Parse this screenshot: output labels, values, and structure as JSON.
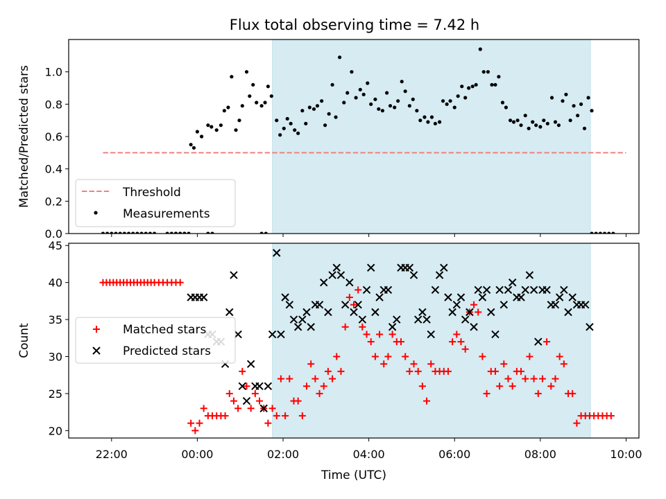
{
  "figure": {
    "title": "Flux total observing time = 7.42 h"
  },
  "chart_data": [
    {
      "type": "scatter",
      "title": "Flux total observing time = 7.42 h",
      "xlabel": "",
      "ylabel": "Matched/Predicted stars",
      "x_unit": "hours UTC (values >= 24 are next day)",
      "xlim": [
        21.0,
        34.3
      ],
      "ylim": [
        0.0,
        1.2
      ],
      "yticks": [
        0.0,
        0.2,
        0.4,
        0.6,
        0.8,
        1.0
      ],
      "yticklabels": [
        "0.0",
        "0.2",
        "0.4",
        "0.6",
        "0.8",
        "1.0"
      ],
      "shaded_span": [
        25.75,
        33.17
      ],
      "legend_loc": "lower left",
      "threshold": {
        "name": "Threshold",
        "y": 0.5,
        "x": [
          21.8,
          34.0
        ],
        "color": "#f08080"
      },
      "measurements": {
        "name": "Measurements",
        "color": "#000000",
        "x": [
          21.8,
          21.9,
          22.0,
          22.1,
          22.2,
          22.3,
          22.4,
          22.5,
          22.6,
          22.7,
          22.8,
          22.9,
          23.0,
          23.3,
          23.4,
          23.5,
          23.6,
          23.7,
          23.85,
          23.92,
          24.0,
          24.1,
          24.25,
          24.33,
          24.45,
          24.55,
          24.63,
          24.72,
          24.8,
          24.9,
          24.98,
          25.05,
          25.15,
          25.22,
          25.3,
          25.38,
          25.5,
          25.58,
          25.65,
          25.73,
          25.85,
          25.93,
          26.02,
          26.1,
          26.18,
          26.27,
          26.35,
          26.45,
          26.53,
          26.62,
          26.72,
          26.8,
          26.9,
          26.98,
          27.07,
          27.15,
          27.23,
          27.32,
          27.42,
          27.5,
          27.6,
          27.7,
          27.8,
          27.88,
          27.97,
          28.05,
          28.15,
          28.23,
          28.32,
          28.42,
          28.5,
          28.6,
          28.68,
          28.77,
          28.85,
          28.95,
          29.03,
          29.12,
          29.2,
          29.3,
          29.38,
          29.47,
          29.55,
          29.65,
          29.73,
          29.82,
          29.9,
          30.0,
          30.08,
          30.17,
          30.25,
          30.33,
          30.42,
          30.5,
          30.6,
          30.68,
          30.78,
          30.87,
          30.95,
          31.03,
          31.12,
          31.2,
          31.3,
          31.38,
          31.47,
          31.55,
          31.65,
          31.73,
          31.82,
          31.9,
          32.0,
          32.08,
          32.17,
          32.27,
          32.35,
          32.43,
          32.52,
          32.6,
          32.7,
          32.78,
          32.87,
          32.95,
          33.03,
          33.12,
          33.2,
          23.5,
          23.6,
          23.7,
          23.8,
          24.25,
          24.35,
          25.5,
          25.6,
          33.2,
          33.3,
          33.4,
          33.5,
          33.6,
          33.7
        ],
        "y": [
          0,
          0,
          0,
          0,
          0,
          0,
          0,
          0,
          0,
          0,
          0,
          0,
          0,
          0,
          0,
          0,
          0,
          0,
          0.55,
          0.53,
          0.63,
          0.6,
          0.67,
          0.66,
          0.64,
          0.67,
          0.76,
          0.78,
          0.97,
          0.64,
          0.7,
          0.79,
          1.0,
          0.85,
          0.92,
          0.81,
          0.79,
          0.81,
          0.91,
          0.85,
          0.7,
          0.61,
          0.65,
          0.71,
          0.68,
          0.64,
          0.62,
          0.76,
          0.68,
          0.78,
          0.77,
          0.79,
          0.82,
          0.67,
          0.74,
          0.92,
          0.72,
          1.09,
          0.81,
          0.87,
          1.0,
          0.84,
          0.89,
          0.86,
          0.93,
          0.8,
          0.83,
          0.77,
          0.76,
          0.87,
          0.79,
          0.78,
          0.82,
          0.94,
          0.88,
          0.79,
          0.83,
          0.76,
          0.7,
          0.72,
          0.69,
          0.72,
          0.68,
          0.69,
          0.82,
          0.8,
          0.82,
          0.78,
          0.85,
          0.91,
          0.84,
          0.9,
          0.91,
          0.92,
          1.14,
          1.0,
          1.0,
          0.92,
          0.92,
          0.97,
          0.81,
          0.78,
          0.7,
          0.69,
          0.7,
          0.67,
          0.73,
          0.65,
          0.69,
          0.67,
          0.66,
          0.7,
          0.68,
          0.84,
          0.69,
          0.67,
          0.82,
          0.86,
          0.7,
          0.79,
          0.73,
          0.8,
          0.65,
          0.84,
          0.76,
          0,
          0,
          0,
          0,
          0,
          0,
          0,
          0,
          0,
          0,
          0,
          0,
          0,
          0
        ]
      }
    },
    {
      "type": "scatter",
      "title": "",
      "xlabel": "Time (UTC)",
      "ylabel": "Count",
      "x_unit": "hours UTC (values >= 24 are next day)",
      "xlim": [
        21.0,
        34.3
      ],
      "ylim": [
        19.0,
        45.3
      ],
      "yticks": [
        20,
        25,
        30,
        35,
        40,
        45
      ],
      "yticklabels": [
        "20",
        "25",
        "30",
        "35",
        "40",
        "45"
      ],
      "xticks": [
        22,
        24,
        26,
        28,
        30,
        32,
        34
      ],
      "xticklabels": [
        "22:00",
        "00:00",
        "02:00",
        "04:00",
        "06:00",
        "08:00",
        "10:00"
      ],
      "shaded_span": [
        25.75,
        33.17
      ],
      "legend_loc": "center left",
      "matched": {
        "name": "Matched stars",
        "color": "#ff0000",
        "x": [
          21.8,
          21.88,
          21.96,
          22.04,
          22.12,
          22.2,
          22.28,
          22.36,
          22.44,
          22.52,
          22.6,
          22.68,
          22.76,
          22.84,
          22.92,
          23.0,
          23.1,
          23.2,
          23.3,
          23.4,
          23.5,
          23.6,
          23.85,
          23.95,
          24.05,
          24.15,
          24.25,
          24.35,
          24.45,
          24.55,
          24.65,
          24.75,
          24.85,
          24.95,
          25.05,
          25.15,
          25.25,
          25.35,
          25.45,
          25.55,
          25.65,
          25.75,
          25.85,
          25.95,
          26.05,
          26.15,
          26.25,
          26.35,
          26.45,
          26.55,
          26.65,
          26.75,
          26.85,
          26.95,
          27.05,
          27.15,
          27.25,
          27.35,
          27.45,
          27.55,
          27.65,
          27.75,
          27.85,
          27.95,
          28.05,
          28.15,
          28.25,
          28.35,
          28.45,
          28.55,
          28.65,
          28.75,
          28.85,
          28.95,
          29.05,
          29.15,
          29.25,
          29.35,
          29.45,
          29.55,
          29.65,
          29.75,
          29.85,
          29.95,
          30.05,
          30.15,
          30.25,
          30.35,
          30.45,
          30.55,
          30.65,
          30.75,
          30.85,
          30.95,
          31.05,
          31.15,
          31.25,
          31.35,
          31.45,
          31.55,
          31.65,
          31.75,
          31.85,
          31.95,
          32.05,
          32.15,
          32.25,
          32.35,
          32.45,
          32.55,
          32.65,
          32.75,
          32.85,
          32.95,
          33.05,
          33.15,
          33.25,
          33.35,
          33.45,
          33.55,
          33.65
        ],
        "y": [
          40,
          40,
          40,
          40,
          40,
          40,
          40,
          40,
          40,
          40,
          40,
          40,
          40,
          40,
          40,
          40,
          40,
          40,
          40,
          40,
          40,
          40,
          21,
          20,
          21,
          23,
          22,
          22,
          22,
          22,
          22,
          25,
          24,
          23,
          28,
          26,
          23,
          25,
          24,
          23,
          21,
          23,
          22,
          27,
          22,
          27,
          24,
          24,
          22,
          26,
          29,
          27,
          25,
          26,
          28,
          27,
          30,
          28,
          34,
          38,
          37,
          39,
          34,
          33,
          32,
          30,
          33,
          29,
          30,
          33,
          32,
          32,
          30,
          28,
          29,
          28,
          26,
          24,
          29,
          28,
          28,
          28,
          28,
          32,
          33,
          32,
          31,
          36,
          37,
          36,
          30,
          25,
          28,
          28,
          26,
          29,
          27,
          26,
          28,
          28,
          27,
          30,
          27,
          25,
          27,
          32,
          26,
          27,
          30,
          29,
          25,
          25,
          21,
          22,
          22,
          22,
          22,
          22,
          22,
          22,
          22
        ],
        "note": "red plus markers"
      },
      "predicted": {
        "name": "Predicted stars",
        "color": "#000000",
        "x": [
          23.85,
          23.95,
          24.05,
          24.15,
          24.25,
          24.35,
          24.45,
          24.55,
          24.65,
          24.75,
          24.85,
          24.95,
          25.05,
          25.15,
          25.25,
          25.35,
          25.45,
          25.55,
          25.65,
          25.75,
          25.85,
          25.95,
          26.05,
          26.15,
          26.25,
          26.35,
          26.45,
          26.55,
          26.65,
          26.75,
          26.85,
          26.95,
          27.05,
          27.15,
          27.25,
          27.35,
          27.45,
          27.55,
          27.65,
          27.75,
          27.85,
          27.95,
          28.05,
          28.15,
          28.25,
          28.35,
          28.45,
          28.55,
          28.65,
          28.75,
          28.85,
          28.95,
          29.05,
          29.15,
          29.25,
          29.35,
          29.45,
          29.55,
          29.65,
          29.75,
          29.85,
          29.95,
          30.05,
          30.15,
          30.25,
          30.35,
          30.45,
          30.55,
          30.65,
          30.75,
          30.85,
          30.95,
          31.05,
          31.15,
          31.25,
          31.35,
          31.45,
          31.55,
          31.65,
          31.75,
          31.85,
          31.95,
          32.05,
          32.15,
          32.25,
          32.35,
          32.45,
          32.55,
          32.65,
          32.75,
          32.85,
          32.95,
          33.05,
          33.15
        ],
        "y": [
          38,
          38,
          38,
          38,
          33,
          33,
          32,
          32,
          29,
          36,
          41,
          33,
          26,
          24,
          29,
          26,
          26,
          23,
          26,
          33,
          44,
          33,
          38,
          37,
          35,
          34,
          35,
          36,
          34,
          37,
          37,
          40,
          36,
          41,
          42,
          41,
          37,
          40,
          36,
          37,
          35,
          39,
          42,
          36,
          38,
          39,
          39,
          34,
          35,
          42,
          42,
          42,
          41,
          35,
          36,
          35,
          33,
          39,
          41,
          42,
          38,
          36,
          37,
          38,
          35,
          36,
          34,
          39,
          38,
          39,
          36,
          33,
          39,
          37,
          39,
          40,
          38,
          38,
          39,
          41,
          39,
          32,
          39,
          39,
          37,
          37,
          38,
          39,
          36,
          38,
          37,
          37,
          37,
          34
        ],
        "note": "black x markers"
      }
    }
  ]
}
